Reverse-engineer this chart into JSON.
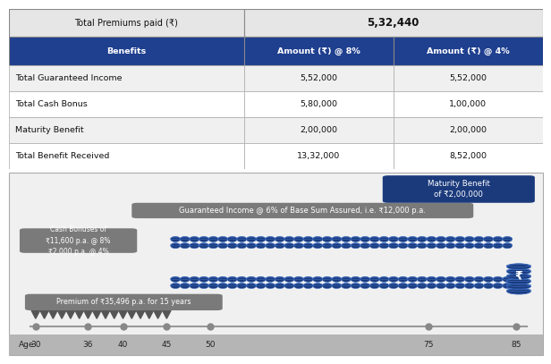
{
  "table_header_bg": "#1f3f8f",
  "table_header_text": "#ffffff",
  "top_row_label": "Total Premiums paid (₹)",
  "top_row_value": "5,32,440",
  "col_headers": [
    "Benefits",
    "Amount (₹) @ 8%",
    "Amount (₹) @ 4%"
  ],
  "rows": [
    [
      "Total Guaranteed Income",
      "5,52,000",
      "5,52,000"
    ],
    [
      "Total Cash Bonus",
      "5,80,000",
      "1,00,000"
    ],
    [
      "Maturity Benefit",
      "2,00,000",
      "2,00,000"
    ],
    [
      "Total Benefit Received",
      "13,32,000",
      "8,52,000"
    ]
  ],
  "diagram_bg": "#f0f0f0",
  "coin_color": "#1a3a7c",
  "coin_edge": "#3a6abf",
  "maturity_box_bg": "#1a3a7c",
  "maturity_box_text": "Maturity Benefit\nof ₹2,00,000",
  "guaranteed_box_bg": "#7a7a7a",
  "guaranteed_box_text": "Guaranteed Income @ 6% of Base Sum Assured, i.e. ₹12,000 p.a.",
  "cash_box_bg": "#7a7a7a",
  "cash_box_text": "Cash Bonuses of\n₹11,600 p.a. @ 8%\n₹2,000 p.a. @ 4%",
  "premium_box_bg": "#7a7a7a",
  "premium_box_text": "Premium of ₹35,496 p.a. for 15 years",
  "axis_ages": [
    30,
    36,
    40,
    45,
    50,
    75,
    85
  ],
  "axis_label": "Age",
  "num_premium_arrows": 16,
  "n_coins": 36
}
